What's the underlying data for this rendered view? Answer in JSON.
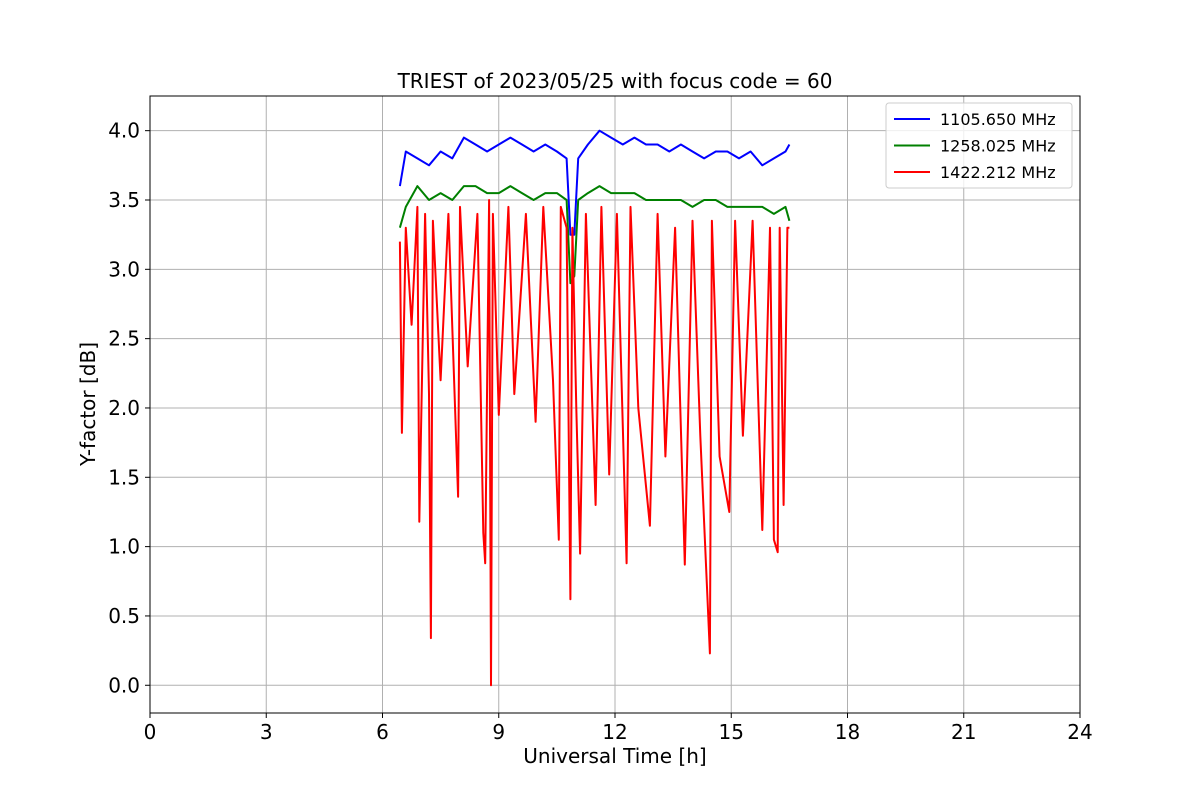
{
  "chart_data": {
    "type": "line",
    "title": "TRIEST of 2023/05/25 with focus code = 60",
    "xlabel": "Universal Time [h]",
    "ylabel": "Y-factor [dB]",
    "xlim": [
      0,
      24
    ],
    "ylim": [
      -0.2,
      4.25
    ],
    "xticks": [
      0,
      3,
      6,
      9,
      12,
      15,
      18,
      21,
      24
    ],
    "yticks": [
      0.0,
      0.5,
      1.0,
      1.5,
      2.0,
      2.5,
      3.0,
      3.5,
      4.0
    ],
    "ytick_labels": [
      "0.0",
      "0.5",
      "1.0",
      "1.5",
      "2.0",
      "2.5",
      "3.0",
      "3.5",
      "4.0"
    ],
    "grid": true,
    "legend_position": "top-right",
    "series": [
      {
        "name": "1105.650 MHz",
        "color": "#0000ff",
        "x": [
          6.45,
          6.6,
          6.9,
          7.2,
          7.5,
          7.8,
          8.1,
          8.4,
          8.7,
          9.0,
          9.3,
          9.6,
          9.9,
          10.2,
          10.5,
          10.75,
          10.85,
          10.95,
          11.05,
          11.3,
          11.6,
          11.9,
          12.2,
          12.5,
          12.8,
          13.1,
          13.4,
          13.7,
          14.0,
          14.3,
          14.6,
          14.9,
          15.2,
          15.5,
          15.8,
          16.1,
          16.4,
          16.5
        ],
        "y": [
          3.6,
          3.85,
          3.8,
          3.75,
          3.85,
          3.8,
          3.95,
          3.9,
          3.85,
          3.9,
          3.95,
          3.9,
          3.85,
          3.9,
          3.85,
          3.8,
          3.25,
          3.25,
          3.8,
          3.9,
          4.0,
          3.95,
          3.9,
          3.95,
          3.9,
          3.9,
          3.85,
          3.9,
          3.85,
          3.8,
          3.85,
          3.85,
          3.8,
          3.85,
          3.75,
          3.8,
          3.85,
          3.9
        ]
      },
      {
        "name": "1258.025 MHz",
        "color": "#008000",
        "x": [
          6.45,
          6.6,
          6.9,
          7.2,
          7.5,
          7.8,
          8.1,
          8.4,
          8.7,
          9.0,
          9.3,
          9.6,
          9.9,
          10.2,
          10.5,
          10.75,
          10.85,
          10.95,
          11.05,
          11.3,
          11.6,
          11.9,
          12.2,
          12.5,
          12.8,
          13.1,
          13.4,
          13.7,
          14.0,
          14.3,
          14.6,
          14.9,
          15.2,
          15.5,
          15.8,
          16.1,
          16.4,
          16.5
        ],
        "y": [
          3.3,
          3.45,
          3.6,
          3.5,
          3.55,
          3.5,
          3.6,
          3.6,
          3.55,
          3.55,
          3.6,
          3.55,
          3.5,
          3.55,
          3.55,
          3.5,
          2.9,
          2.95,
          3.5,
          3.55,
          3.6,
          3.55,
          3.55,
          3.55,
          3.5,
          3.5,
          3.5,
          3.5,
          3.45,
          3.5,
          3.5,
          3.45,
          3.45,
          3.45,
          3.45,
          3.4,
          3.45,
          3.35
        ]
      },
      {
        "name": "1422.212 MHz",
        "color": "#ff0000",
        "x": [
          6.45,
          6.5,
          6.6,
          6.75,
          6.9,
          6.95,
          7.1,
          7.2,
          7.25,
          7.3,
          7.5,
          7.7,
          7.95,
          8.0,
          8.2,
          8.45,
          8.6,
          8.65,
          8.75,
          8.8,
          8.85,
          9.0,
          9.25,
          9.4,
          9.7,
          9.95,
          10.15,
          10.4,
          10.55,
          10.6,
          10.75,
          10.85,
          10.9,
          11.0,
          11.1,
          11.25,
          11.5,
          11.65,
          11.85,
          12.05,
          12.3,
          12.4,
          12.6,
          12.9,
          13.1,
          13.3,
          13.55,
          13.8,
          14.0,
          14.2,
          14.45,
          14.5,
          14.7,
          14.95,
          15.1,
          15.3,
          15.55,
          15.8,
          16.0,
          16.1,
          16.2,
          16.25,
          16.35,
          16.45,
          16.5
        ],
        "y": [
          3.2,
          1.82,
          3.3,
          2.6,
          3.45,
          1.18,
          3.4,
          2.1,
          0.34,
          3.35,
          2.2,
          3.4,
          1.36,
          3.45,
          2.3,
          3.4,
          1.1,
          0.88,
          3.5,
          0.0,
          3.4,
          1.95,
          3.45,
          2.1,
          3.4,
          1.9,
          3.45,
          2.2,
          1.05,
          3.45,
          3.3,
          0.62,
          3.3,
          2.0,
          0.95,
          3.4,
          1.3,
          3.45,
          1.52,
          3.4,
          0.88,
          3.45,
          2.0,
          1.15,
          3.4,
          1.65,
          3.3,
          0.87,
          3.35,
          1.8,
          0.23,
          3.35,
          1.65,
          1.25,
          3.35,
          1.8,
          3.35,
          1.12,
          3.3,
          1.05,
          0.96,
          3.3,
          1.3,
          3.3,
          3.3
        ]
      }
    ]
  }
}
